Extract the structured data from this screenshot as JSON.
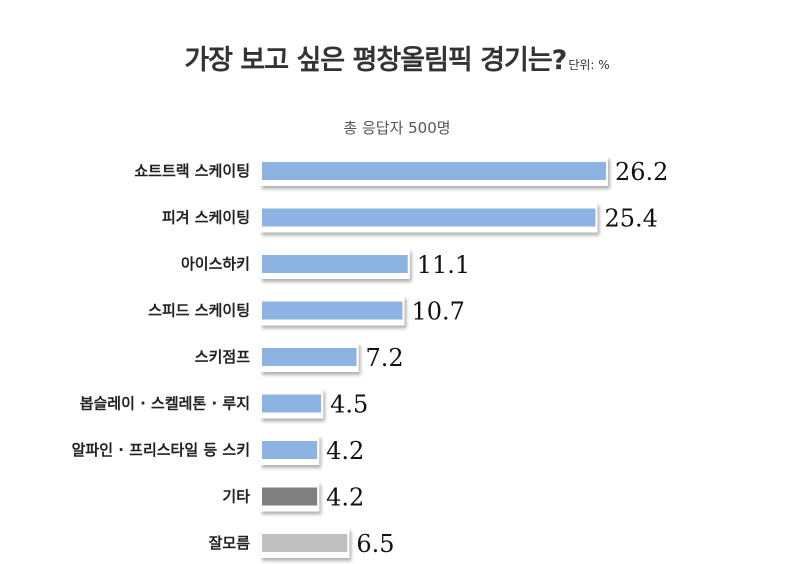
{
  "header": {
    "title": "가장 보고 싶은 평창올림픽 경기는?",
    "unit": "단위: %",
    "subtitle": "총 응답자 500명"
  },
  "colors": {
    "bar_default": "#8db3e2",
    "bar_other": "#808080",
    "bar_unknown": "#bfbfbf",
    "value_default": "#111111",
    "value_unknown": "#808080"
  },
  "chart_data": {
    "type": "bar",
    "orientation": "horizontal",
    "title": "가장 보고 싶은 평창올림픽 경기는?",
    "subtitle": "총 응답자 500명",
    "unit": "%",
    "categories": [
      "쇼트트랙 스케이팅",
      "피겨 스케이팅",
      "아이스하키",
      "스피드 스케이팅",
      "스키점프",
      "봅슬레이 · 스켈레톤 · 루지",
      "알파인 · 프리스타일 등 스키",
      "기타",
      "잘모름"
    ],
    "values": [
      26.2,
      25.4,
      11.1,
      10.7,
      7.2,
      4.5,
      4.2,
      4.2,
      6.5
    ],
    "value_labels": [
      "26.2",
      "25.4",
      "11.1",
      "10.7",
      "7.2",
      "4.5",
      "4.2",
      "4.2",
      "6.5"
    ],
    "bar_colors": [
      "#8db3e2",
      "#8db3e2",
      "#8db3e2",
      "#8db3e2",
      "#8db3e2",
      "#8db3e2",
      "#8db3e2",
      "#808080",
      "#bfbfbf"
    ],
    "value_colors": [
      "#111111",
      "#111111",
      "#111111",
      "#111111",
      "#111111",
      "#111111",
      "#111111",
      "#111111",
      "#808080"
    ],
    "xlim": [
      0,
      26.2
    ],
    "grid": false,
    "legend": "none"
  }
}
